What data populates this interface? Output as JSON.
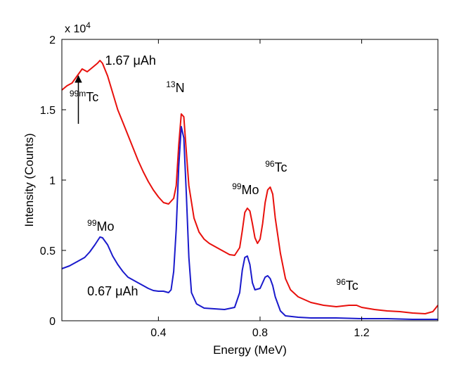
{
  "chart_data": {
    "type": "line",
    "xlabel": "Energy (MeV)",
    "ylabel": "Intensity (Counts)",
    "xlim": [
      0.02,
      1.5
    ],
    "ylim": [
      0,
      20000
    ],
    "x_ticks": [
      0.4,
      0.8,
      1.2
    ],
    "x_tick_labels": [
      "0.4",
      "0.8",
      "1.2"
    ],
    "y_ticks": [
      0,
      5000,
      10000,
      15000,
      20000
    ],
    "y_tick_labels": [
      "0",
      "0.5",
      "1",
      "1.5",
      "2"
    ],
    "y_multiplier": {
      "base": "x 10",
      "exp": "4"
    },
    "grid": false,
    "series": [
      {
        "name": "1.67 μAh",
        "color": "#e8100c",
        "points": [
          [
            0.02,
            16400
          ],
          [
            0.04,
            16700
          ],
          [
            0.06,
            16900
          ],
          [
            0.08,
            17400
          ],
          [
            0.1,
            17900
          ],
          [
            0.12,
            17700
          ],
          [
            0.14,
            18000
          ],
          [
            0.16,
            18300
          ],
          [
            0.17,
            18500
          ],
          [
            0.18,
            18300
          ],
          [
            0.2,
            17400
          ],
          [
            0.22,
            16200
          ],
          [
            0.24,
            15000
          ],
          [
            0.26,
            14100
          ],
          [
            0.28,
            13200
          ],
          [
            0.3,
            12300
          ],
          [
            0.32,
            11400
          ],
          [
            0.34,
            10600
          ],
          [
            0.36,
            9900
          ],
          [
            0.38,
            9300
          ],
          [
            0.4,
            8800
          ],
          [
            0.42,
            8400
          ],
          [
            0.44,
            8300
          ],
          [
            0.46,
            8700
          ],
          [
            0.47,
            9600
          ],
          [
            0.48,
            12500
          ],
          [
            0.49,
            14700
          ],
          [
            0.5,
            14500
          ],
          [
            0.51,
            12000
          ],
          [
            0.52,
            9600
          ],
          [
            0.54,
            7300
          ],
          [
            0.56,
            6300
          ],
          [
            0.58,
            5800
          ],
          [
            0.6,
            5500
          ],
          [
            0.62,
            5300
          ],
          [
            0.64,
            5100
          ],
          [
            0.66,
            4900
          ],
          [
            0.68,
            4700
          ],
          [
            0.7,
            4650
          ],
          [
            0.72,
            5200
          ],
          [
            0.73,
            6400
          ],
          [
            0.74,
            7700
          ],
          [
            0.75,
            8000
          ],
          [
            0.76,
            7800
          ],
          [
            0.77,
            6900
          ],
          [
            0.78,
            5900
          ],
          [
            0.79,
            5500
          ],
          [
            0.8,
            5800
          ],
          [
            0.81,
            6900
          ],
          [
            0.82,
            8400
          ],
          [
            0.83,
            9300
          ],
          [
            0.84,
            9500
          ],
          [
            0.85,
            9000
          ],
          [
            0.86,
            7300
          ],
          [
            0.88,
            4800
          ],
          [
            0.9,
            3000
          ],
          [
            0.92,
            2200
          ],
          [
            0.95,
            1700
          ],
          [
            1.0,
            1300
          ],
          [
            1.05,
            1100
          ],
          [
            1.1,
            1000
          ],
          [
            1.15,
            1100
          ],
          [
            1.18,
            1100
          ],
          [
            1.2,
            950
          ],
          [
            1.25,
            800
          ],
          [
            1.3,
            700
          ],
          [
            1.35,
            650
          ],
          [
            1.4,
            550
          ],
          [
            1.45,
            500
          ],
          [
            1.48,
            650
          ],
          [
            1.5,
            1100
          ]
        ]
      },
      {
        "name": "0.67 μAh",
        "color": "#1a1acc",
        "points": [
          [
            0.02,
            3700
          ],
          [
            0.05,
            3900
          ],
          [
            0.08,
            4200
          ],
          [
            0.11,
            4500
          ],
          [
            0.13,
            4900
          ],
          [
            0.15,
            5400
          ],
          [
            0.17,
            5950
          ],
          [
            0.18,
            5900
          ],
          [
            0.2,
            5400
          ],
          [
            0.22,
            4600
          ],
          [
            0.24,
            4000
          ],
          [
            0.26,
            3500
          ],
          [
            0.28,
            3100
          ],
          [
            0.3,
            2900
          ],
          [
            0.32,
            2700
          ],
          [
            0.34,
            2500
          ],
          [
            0.36,
            2300
          ],
          [
            0.38,
            2150
          ],
          [
            0.4,
            2100
          ],
          [
            0.42,
            2100
          ],
          [
            0.44,
            2000
          ],
          [
            0.45,
            2200
          ],
          [
            0.46,
            3500
          ],
          [
            0.47,
            6500
          ],
          [
            0.48,
            11000
          ],
          [
            0.49,
            13800
          ],
          [
            0.5,
            13000
          ],
          [
            0.51,
            9000
          ],
          [
            0.52,
            4500
          ],
          [
            0.53,
            2000
          ],
          [
            0.55,
            1200
          ],
          [
            0.58,
            900
          ],
          [
            0.62,
            850
          ],
          [
            0.66,
            800
          ],
          [
            0.7,
            950
          ],
          [
            0.72,
            2000
          ],
          [
            0.73,
            3600
          ],
          [
            0.74,
            4500
          ],
          [
            0.75,
            4600
          ],
          [
            0.76,
            4000
          ],
          [
            0.77,
            2700
          ],
          [
            0.78,
            2200
          ],
          [
            0.8,
            2300
          ],
          [
            0.82,
            3100
          ],
          [
            0.83,
            3200
          ],
          [
            0.84,
            3000
          ],
          [
            0.85,
            2500
          ],
          [
            0.86,
            1700
          ],
          [
            0.88,
            700
          ],
          [
            0.9,
            350
          ],
          [
            0.95,
            250
          ],
          [
            1.0,
            200
          ],
          [
            1.1,
            200
          ],
          [
            1.2,
            150
          ],
          [
            1.3,
            150
          ],
          [
            1.4,
            100
          ],
          [
            1.5,
            100
          ]
        ]
      }
    ],
    "annotations": [
      {
        "id": "dose-high",
        "sup": "",
        "text": "1.67 μAh",
        "x": 0.19,
        "y": 18200
      },
      {
        "id": "n13",
        "sup": "13",
        "text": "N",
        "x": 0.43,
        "y": 16250
      },
      {
        "id": "tc99m",
        "sup": "99m",
        "text": "Tc",
        "x": 0.05,
        "y": 15600
      },
      {
        "id": "mo99-right",
        "sup": "99",
        "text": "Mo",
        "x": 0.69,
        "y": 9000
      },
      {
        "id": "tc96-peak",
        "sup": "96",
        "text": "Tc",
        "x": 0.82,
        "y": 10600
      },
      {
        "id": "mo99-left",
        "sup": "99",
        "text": "Mo",
        "x": 0.12,
        "y": 6400
      },
      {
        "id": "dose-low",
        "sup": "",
        "text": "0.67 μAh",
        "x": 0.12,
        "y": 1800
      },
      {
        "id": "tc96-tail",
        "sup": "96",
        "text": "Tc",
        "x": 1.1,
        "y": 2200
      }
    ],
    "arrow": {
      "from": [
        0.085,
        14000
      ],
      "to": [
        0.085,
        17400
      ]
    }
  }
}
